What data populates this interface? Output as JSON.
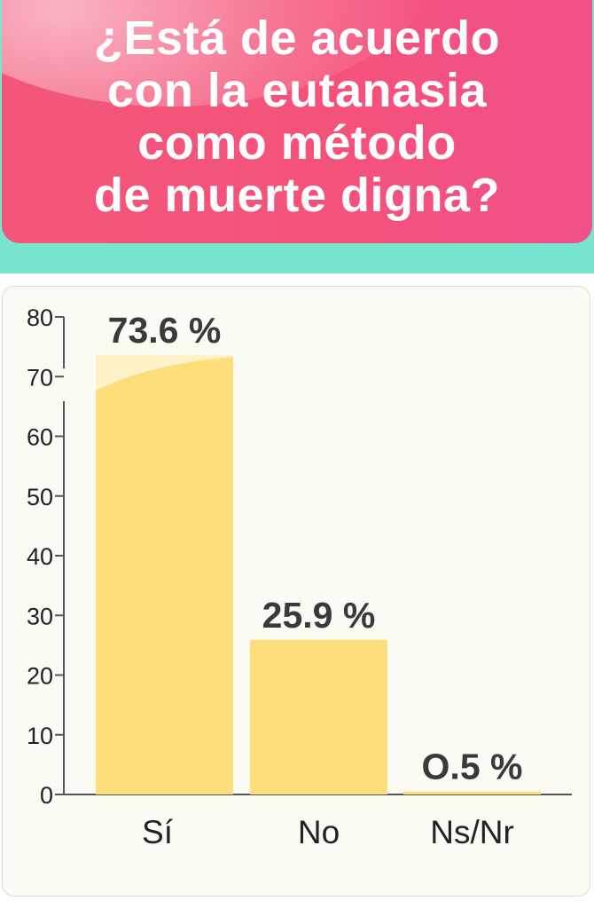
{
  "header": {
    "title": "¿Está de acuerdo\ncon la eutanasia\ncomo método\nde muerte digna?"
  },
  "chart_data": {
    "type": "bar",
    "title": "¿Está de acuerdo con la eutanasia como método de muerte digna?",
    "categories": [
      "Sí",
      "No",
      "Ns/Nr"
    ],
    "values": [
      73.6,
      25.9,
      0.5
    ],
    "data_labels": [
      "73.6 %",
      "25.9 %",
      "O.5 %"
    ],
    "y_ticks": [
      0,
      10,
      20,
      30,
      40,
      50,
      60,
      70,
      80
    ],
    "ylim": [
      0,
      80
    ],
    "xlabel": "",
    "ylabel": "",
    "grid": false,
    "legend": "none",
    "bar_color": "#fede7a",
    "highlight_color": "#fdf2c8"
  }
}
